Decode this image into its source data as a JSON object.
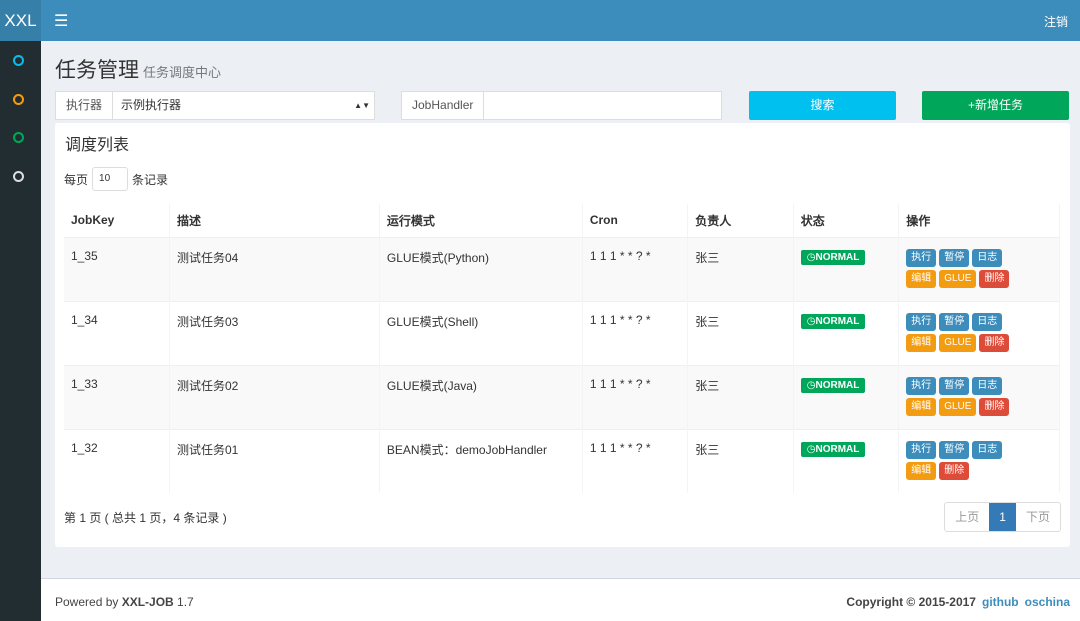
{
  "header": {
    "logo": "XXL",
    "logout": "注销"
  },
  "page": {
    "title": "任务管理",
    "subtitle": "任务调度中心"
  },
  "filters": {
    "executor_label": "执行器",
    "executor_value": "示例执行器",
    "jobhandler_label": "JobHandler",
    "jobhandler_value": "",
    "search": "搜索",
    "add": "+新增任务"
  },
  "list": {
    "title": "调度列表",
    "per_page_prefix": "每页",
    "per_page": "10",
    "per_page_suffix": "条记录",
    "columns": [
      "JobKey",
      "描述",
      "运行模式",
      "Cron",
      "负责人",
      "状态",
      "操作"
    ],
    "rows": [
      {
        "key": "1_35",
        "desc": "测试任务04",
        "mode": "GLUE模式(Python)",
        "cron": "1 1 1 * * ? *",
        "owner": "张三",
        "status": "NORMAL",
        "glue": true
      },
      {
        "key": "1_34",
        "desc": "测试任务03",
        "mode": "GLUE模式(Shell)",
        "cron": "1 1 1 * * ? *",
        "owner": "张三",
        "status": "NORMAL",
        "glue": true
      },
      {
        "key": "1_33",
        "desc": "测试任务02",
        "mode": "GLUE模式(Java)",
        "cron": "1 1 1 * * ? *",
        "owner": "张三",
        "status": "NORMAL",
        "glue": true
      },
      {
        "key": "1_32",
        "desc": "测试任务01",
        "mode": "BEAN模式：demoJobHandler",
        "cron": "1 1 1 * * ? *",
        "owner": "张三",
        "status": "NORMAL",
        "glue": false
      }
    ],
    "actions": {
      "run": "执行",
      "pause": "暂停",
      "log": "日志",
      "edit": "编辑",
      "glue": "GLUE",
      "delete": "删除"
    },
    "info": "第 1 页 ( 总共 1 页，4 条记录 )",
    "pager": {
      "prev": "上页",
      "current": "1",
      "next": "下页"
    }
  },
  "footer": {
    "powered": "Powered by ",
    "brand": "XXL-JOB",
    "version": " 1.7",
    "copyright": "Copyright © 2015-2017",
    "github": "github",
    "oschina": "oschina"
  },
  "colors": {
    "header": "#3c8dbc",
    "sidebar": "#222d32",
    "search": "#00c0ef",
    "add": "#00a65a"
  }
}
